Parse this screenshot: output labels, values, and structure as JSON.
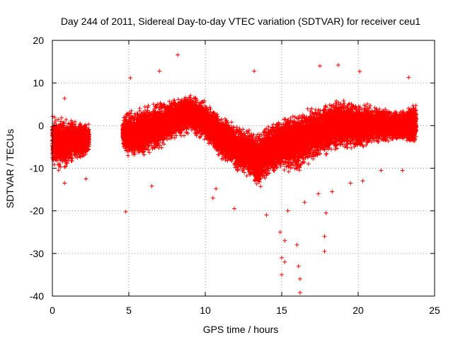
{
  "chart_data": {
    "type": "scatter",
    "title": "Day 244 of 2011, Sidereal Day-to-day VTEC variation (SDTVAR) for receiver ceu1",
    "xlabel": "GPS time / hours",
    "ylabel": "SDTVAR / TECUs",
    "xlim": [
      0,
      25
    ],
    "ylim": [
      -40,
      20
    ],
    "xticks": [
      0,
      5,
      10,
      15,
      20,
      25
    ],
    "yticks": [
      -40,
      -30,
      -20,
      -10,
      0,
      10,
      20
    ],
    "grid": true,
    "marker": "+",
    "series": [
      {
        "name": "SDTVAR",
        "color": "#ff0000",
        "envelope": [
          {
            "x": 0.0,
            "low": -10,
            "high": 3
          },
          {
            "x": 0.5,
            "low": -11,
            "high": 3
          },
          {
            "x": 1.0,
            "low": -10,
            "high": 2
          },
          {
            "x": 1.5,
            "low": -8,
            "high": 2
          },
          {
            "x": 2.0,
            "low": -8,
            "high": 1
          },
          {
            "x": 2.4,
            "low": -7,
            "high": 1
          },
          {
            "x": 4.6,
            "low": -6,
            "high": 2
          },
          {
            "x": 5.0,
            "low": -8,
            "high": 4
          },
          {
            "x": 6.0,
            "low": -8,
            "high": 5
          },
          {
            "x": 7.0,
            "low": -6,
            "high": 6
          },
          {
            "x": 8.0,
            "low": -4,
            "high": 7
          },
          {
            "x": 9.0,
            "low": -2,
            "high": 8
          },
          {
            "x": 10.0,
            "low": -4,
            "high": 6
          },
          {
            "x": 11.0,
            "low": -8,
            "high": 3
          },
          {
            "x": 12.0,
            "low": -11,
            "high": 1
          },
          {
            "x": 13.0,
            "low": -13,
            "high": -1
          },
          {
            "x": 13.5,
            "low": -16,
            "high": -1
          },
          {
            "x": 14.0,
            "low": -13,
            "high": 1
          },
          {
            "x": 15.0,
            "low": -11,
            "high": 3
          },
          {
            "x": 16.0,
            "low": -12,
            "high": 4
          },
          {
            "x": 17.0,
            "low": -9,
            "high": 5
          },
          {
            "x": 18.0,
            "low": -7,
            "high": 6
          },
          {
            "x": 19.0,
            "low": -6,
            "high": 7
          },
          {
            "x": 20.0,
            "low": -6,
            "high": 6
          },
          {
            "x": 21.0,
            "low": -5,
            "high": 5
          },
          {
            "x": 22.0,
            "low": -4,
            "high": 4
          },
          {
            "x": 23.0,
            "low": -4,
            "high": 4
          },
          {
            "x": 23.8,
            "low": -5,
            "high": 6
          }
        ],
        "outliers": [
          [
            8.2,
            16.6
          ],
          [
            18.7,
            14.2
          ],
          [
            17.5,
            14.0
          ],
          [
            20.1,
            12.7
          ],
          [
            13.2,
            12.8
          ],
          [
            7.0,
            12.8
          ],
          [
            5.1,
            11.2
          ],
          [
            23.3,
            11.3
          ],
          [
            0.8,
            6.4
          ],
          [
            10.5,
            -17.0
          ],
          [
            11.9,
            -19.5
          ],
          [
            4.8,
            -20.2
          ],
          [
            0.8,
            -13.5
          ],
          [
            2.2,
            -12.5
          ],
          [
            6.5,
            -14.2
          ],
          [
            10.7,
            -14.8
          ],
          [
            14.0,
            -21.0
          ],
          [
            14.9,
            -25.0
          ],
          [
            15.0,
            -31.0
          ],
          [
            15.0,
            -35.0
          ],
          [
            15.2,
            -27.0
          ],
          [
            15.2,
            -32.0
          ],
          [
            16.1,
            -33.0
          ],
          [
            16.2,
            -36.0
          ],
          [
            16.2,
            -39.2
          ],
          [
            16.0,
            -28.0
          ],
          [
            17.8,
            -26.0
          ],
          [
            17.8,
            -29.5
          ],
          [
            17.9,
            -20.5
          ],
          [
            15.4,
            -20.0
          ],
          [
            16.5,
            -18.0
          ],
          [
            17.4,
            -16.0
          ],
          [
            18.3,
            -15.5
          ],
          [
            19.5,
            -13.5
          ],
          [
            20.3,
            -13.0
          ],
          [
            21.5,
            -10.5
          ],
          [
            22.9,
            -10.5
          ]
        ]
      }
    ]
  }
}
